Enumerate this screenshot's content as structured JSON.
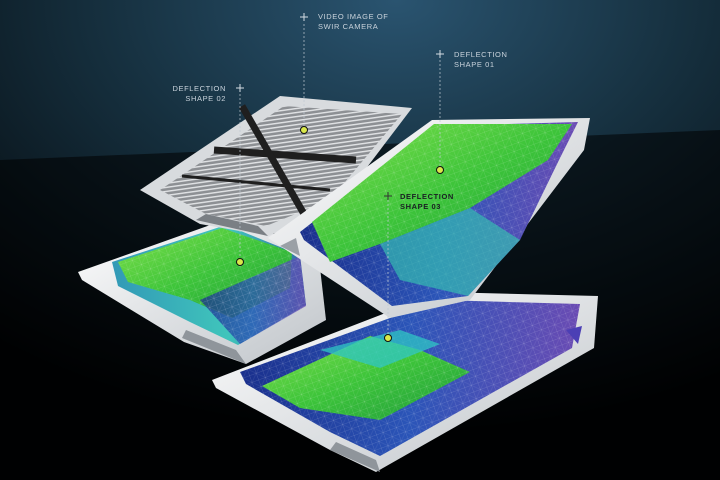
{
  "labels": {
    "video_image": {
      "line1": "VIDEO IMAGE OF",
      "line2": "SWIR CAMERA"
    },
    "shape_01": {
      "line1": "DEFLECTION",
      "line2": "SHAPE 01"
    },
    "shape_02": {
      "line1": "DEFLECTION",
      "line2": "SHAPE 02"
    },
    "shape_03": {
      "line1": "DEFLECTION",
      "line2": "SHAPE 03"
    }
  },
  "colors": {
    "background_top": "#1d3a4f",
    "background_bottom": "#000000",
    "sheet": "#e9ecef",
    "surface_green": "#39c23a",
    "surface_light_green": "#9be64d",
    "surface_blue": "#2c3f9e",
    "surface_cyan": "#1fa4b8",
    "camera_dark": "#2a2a2a",
    "camera_light": "#b9bcbf",
    "marker_yellow": "#d9e84a"
  }
}
